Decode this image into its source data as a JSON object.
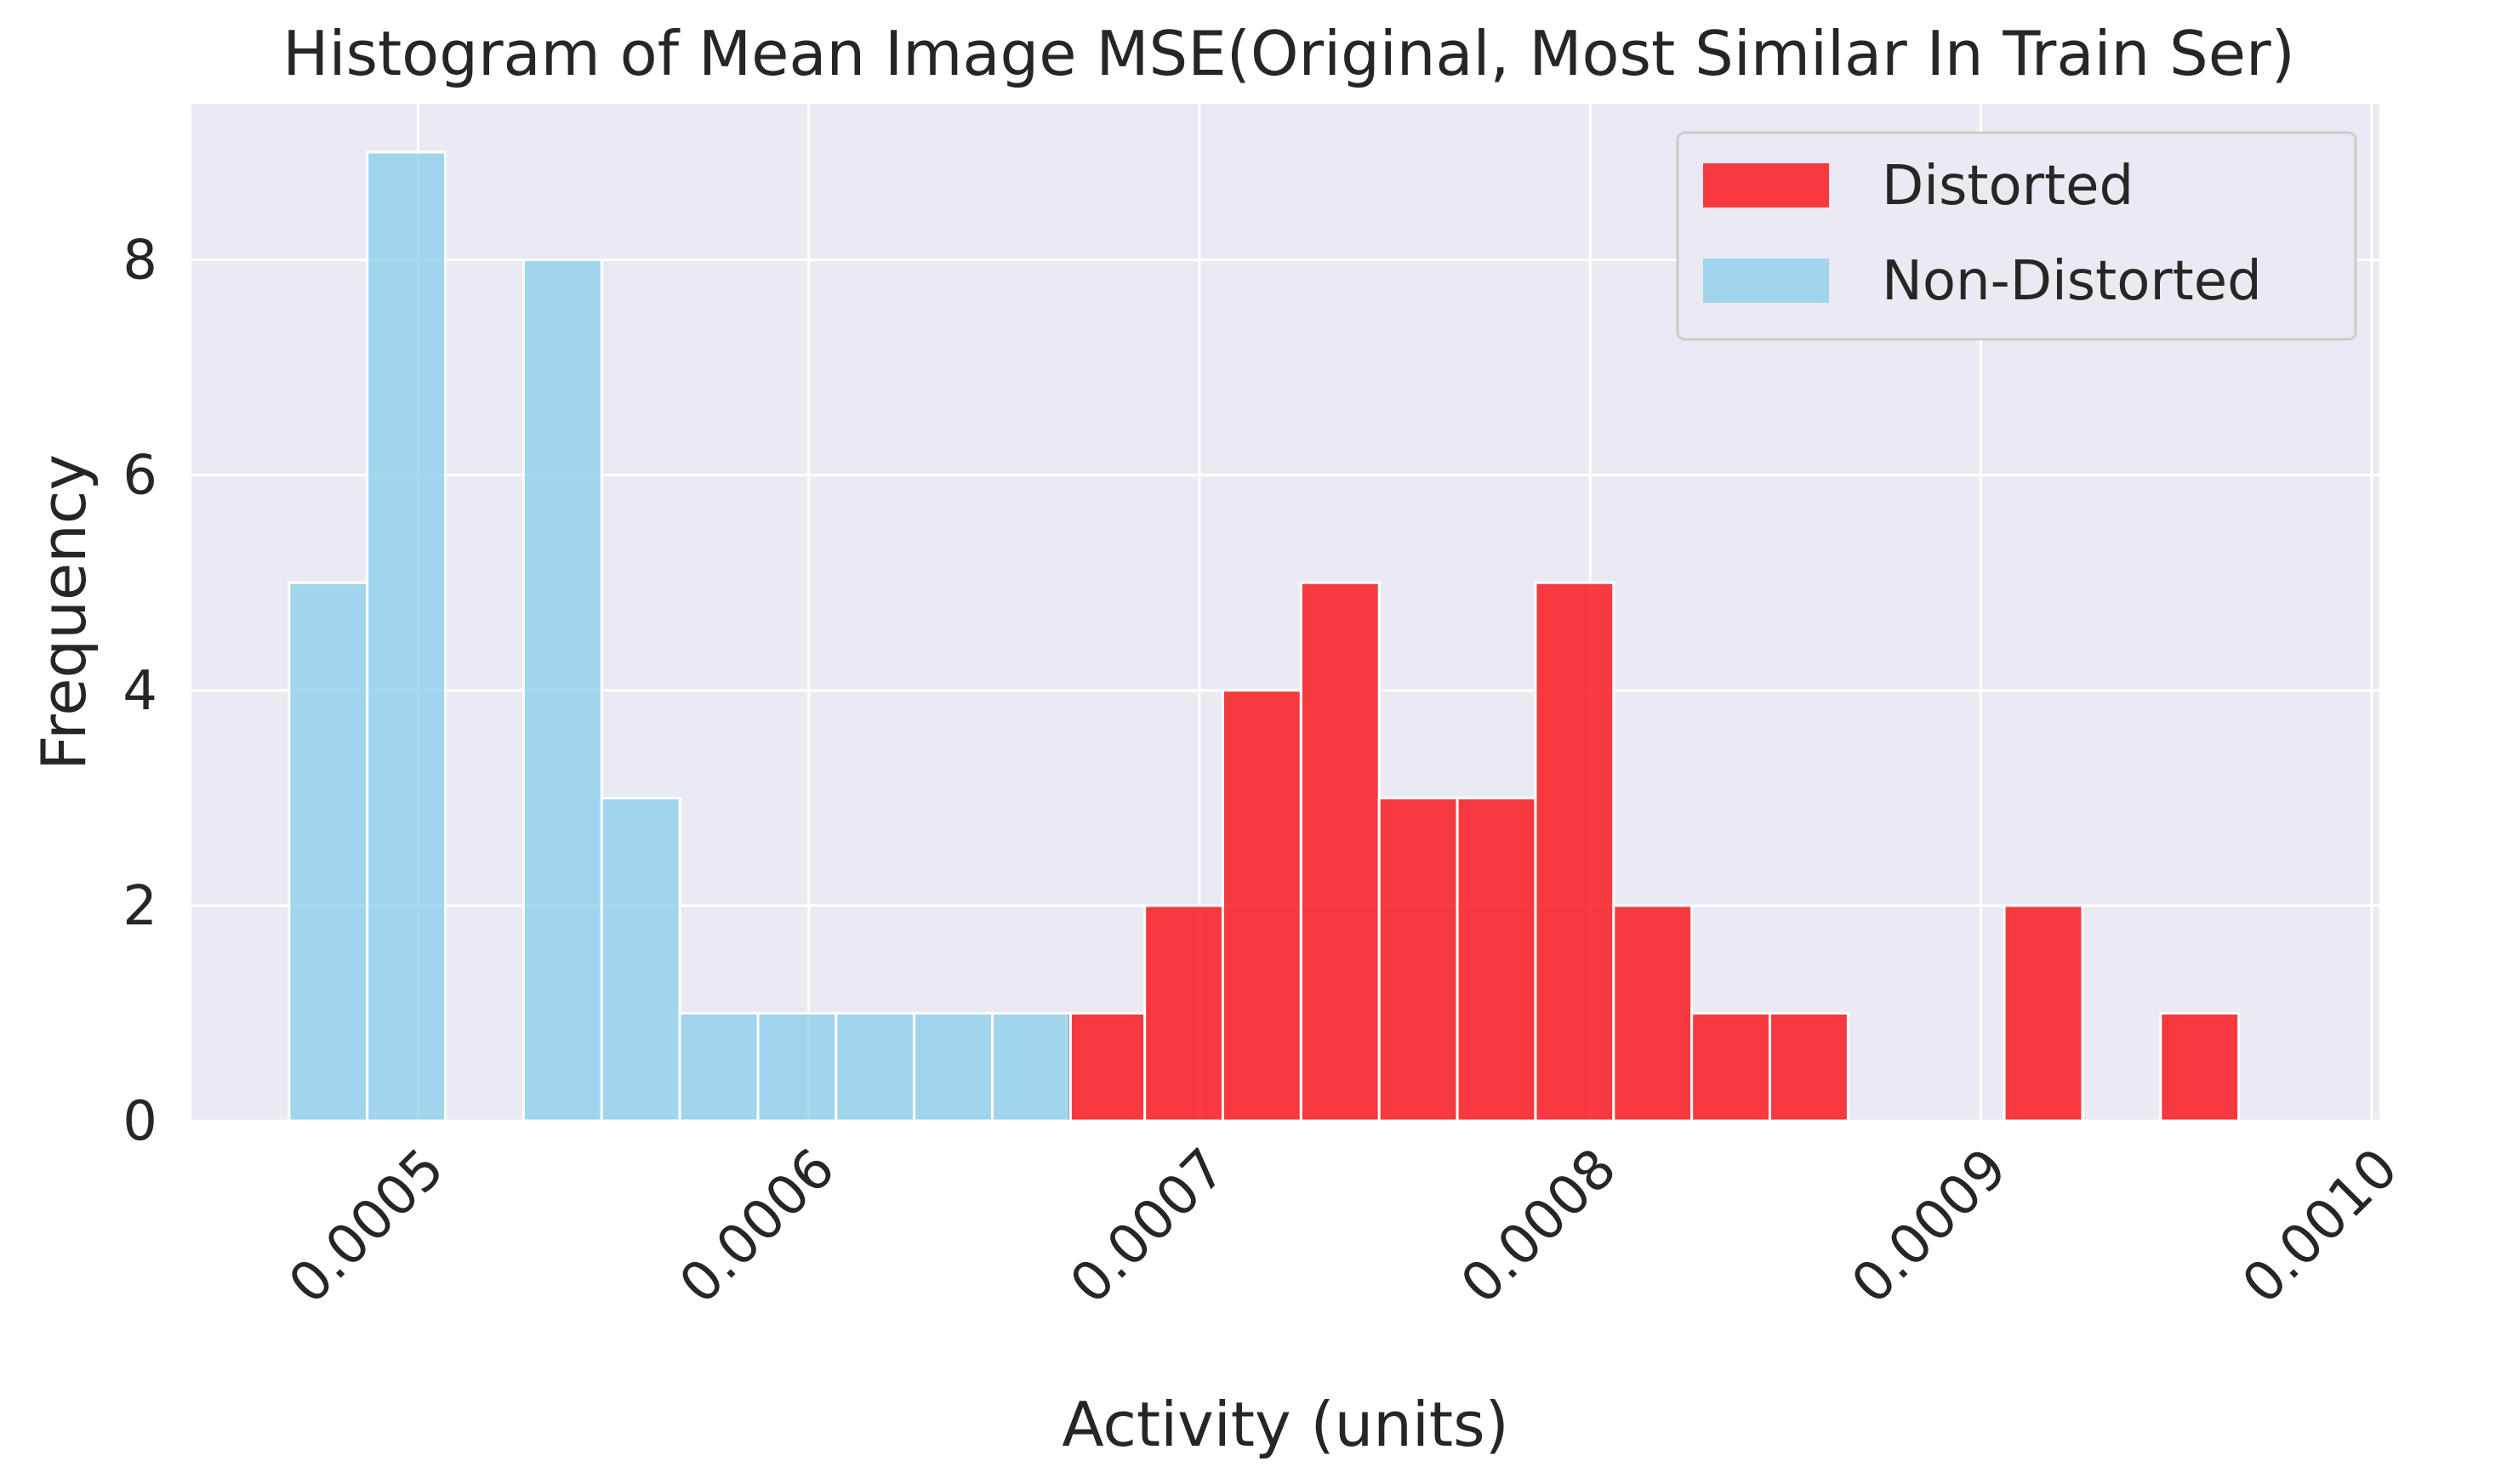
{
  "chart_data": {
    "type": "bar",
    "title": "Histogram of Mean Image MSE(Original, Most Similar In Train Ser)",
    "xlabel": "Activity (units)",
    "ylabel": "Frequency",
    "xlim": [
      0.000442,
      0.001002
    ],
    "ylim": [
      0,
      9.45
    ],
    "xticks": [
      0.0005,
      0.0006,
      0.0007,
      0.0008,
      0.0009,
      0.001
    ],
    "xtick_labels": [
      "0.0005",
      "0.0006",
      "0.0007",
      "0.0008",
      "0.0009",
      "0.0010"
    ],
    "yticks": [
      0,
      2,
      4,
      6,
      8
    ],
    "ytick_labels": [
      "0",
      "2",
      "4",
      "6",
      "8"
    ],
    "grid": true,
    "legend_position": "top-right",
    "series": [
      {
        "name": "Distorted",
        "color": "#f90d12",
        "bins": [
          {
            "x0": 0.000666,
            "x1": 0.000686,
            "count": 1
          },
          {
            "x0": 0.000686,
            "x1": 0.000706,
            "count": 2
          },
          {
            "x0": 0.000706,
            "x1": 0.000726,
            "count": 4
          },
          {
            "x0": 0.000726,
            "x1": 0.000746,
            "count": 5
          },
          {
            "x0": 0.000746,
            "x1": 0.000766,
            "count": 3
          },
          {
            "x0": 0.000766,
            "x1": 0.000786,
            "count": 3
          },
          {
            "x0": 0.000786,
            "x1": 0.000806,
            "count": 5
          },
          {
            "x0": 0.000806,
            "x1": 0.000826,
            "count": 2
          },
          {
            "x0": 0.000826,
            "x1": 0.000846,
            "count": 1
          },
          {
            "x0": 0.000846,
            "x1": 0.000866,
            "count": 1
          },
          {
            "x0": 0.000866,
            "x1": 0.000886,
            "count": 0
          },
          {
            "x0": 0.000886,
            "x1": 0.000906,
            "count": 0
          },
          {
            "x0": 0.000906,
            "x1": 0.000926,
            "count": 2
          },
          {
            "x0": 0.000926,
            "x1": 0.000946,
            "count": 0
          },
          {
            "x0": 0.000946,
            "x1": 0.000966,
            "count": 1
          }
        ]
      },
      {
        "name": "Non-Distorted",
        "color": "#87ceeb",
        "bins": [
          {
            "x0": 0.000467,
            "x1": 0.000487,
            "count": 5
          },
          {
            "x0": 0.000487,
            "x1": 0.000507,
            "count": 9
          },
          {
            "x0": 0.000507,
            "x1": 0.000527,
            "count": 0
          },
          {
            "x0": 0.000527,
            "x1": 0.000547,
            "count": 8
          },
          {
            "x0": 0.000547,
            "x1": 0.000567,
            "count": 3
          },
          {
            "x0": 0.000567,
            "x1": 0.000587,
            "count": 1
          },
          {
            "x0": 0.000587,
            "x1": 0.000607,
            "count": 1
          },
          {
            "x0": 0.000607,
            "x1": 0.000627,
            "count": 1
          },
          {
            "x0": 0.000627,
            "x1": 0.000647,
            "count": 1
          },
          {
            "x0": 0.000647,
            "x1": 0.000667,
            "count": 1
          }
        ]
      }
    ]
  }
}
